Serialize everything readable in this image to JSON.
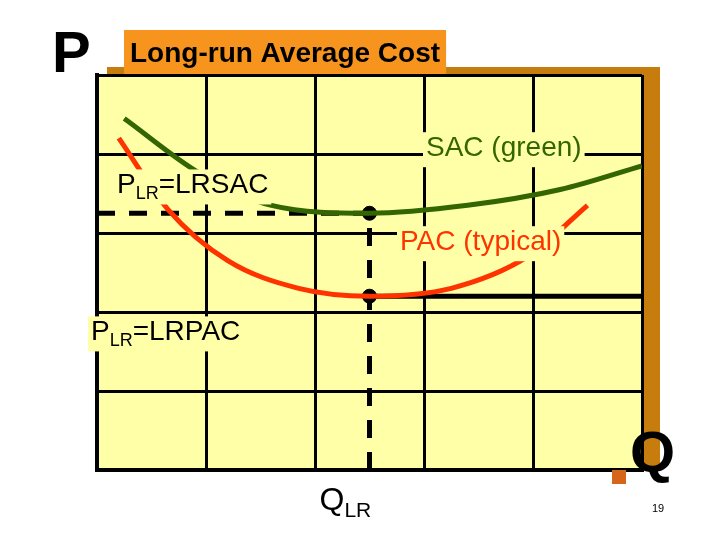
{
  "chart_data": {
    "type": "line",
    "title": "Long-run Average Cost",
    "y_label": "P",
    "x_label": "Q",
    "page_number": 19,
    "xlim": [
      0,
      10
    ],
    "ylim": [
      0,
      10
    ],
    "xticks": [
      0,
      2,
      4,
      6,
      8,
      10
    ],
    "yticks": [
      0,
      2,
      4,
      6,
      8,
      10
    ],
    "grid": true,
    "tick_labels": false,
    "series": [
      {
        "name": "SAC (green)",
        "color": "#336600",
        "line_style": "solid",
        "x": [
          0.5,
          1.9,
          3.2,
          5.0,
          6.8,
          8.5,
          10.0
        ],
        "values": [
          8.9,
          7.5,
          6.7,
          6.5,
          6.7,
          7.1,
          7.7
        ]
      },
      {
        "name": "PAC (typical)",
        "color": "#ff3300",
        "line_style": "solid",
        "x": [
          0.4,
          1.3,
          2.4,
          3.7,
          5.0,
          6.5,
          7.9,
          9.0
        ],
        "values": [
          8.4,
          6.6,
          5.3,
          4.6,
          4.4,
          4.6,
          5.4,
          6.7
        ]
      }
    ],
    "reference_lines": [
      {
        "label": "PLR=LRSAC",
        "subscript": "LR",
        "color": "#000000",
        "line_style": "dashed",
        "x": [
          0,
          5
        ],
        "values": [
          6.5,
          6.5
        ]
      },
      {
        "label": "PLR=LRPAC",
        "subscript": "LR",
        "color": "#000000",
        "line_style": "solid",
        "x": [
          5,
          10
        ],
        "values": [
          4.4,
          4.4
        ]
      },
      {
        "label": "QLR",
        "subscript": "LR",
        "color": "#000000",
        "line_style": "dashed",
        "x": [
          5,
          5
        ],
        "values": [
          0,
          6.5
        ]
      }
    ],
    "points": {
      "color": "#000000",
      "marker": "circle",
      "x": [
        5,
        5
      ],
      "values": [
        6.5,
        4.4
      ]
    }
  }
}
